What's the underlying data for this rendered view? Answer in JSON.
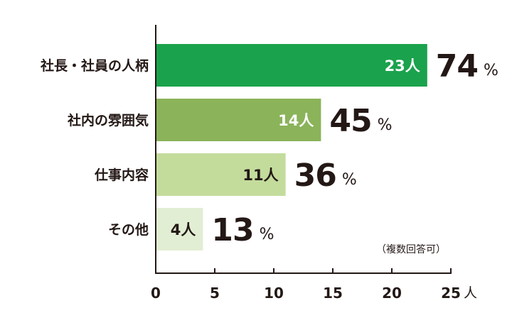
{
  "chart_data": {
    "type": "bar",
    "orientation": "horizontal",
    "categories": [
      "社長・社員の人柄",
      "社内の雰囲気",
      "仕事内容",
      "その他"
    ],
    "values": [
      23,
      14,
      11,
      4
    ],
    "value_labels": [
      "23人",
      "14人",
      "11人",
      "4人"
    ],
    "percent_values": [
      "74",
      "45",
      "36",
      "13"
    ],
    "percent_symbol": "%",
    "bar_colors": [
      "#1aa24c",
      "#8ab35a",
      "#c3dc9c",
      "#e2eed3"
    ],
    "value_label_colors": [
      "#ffffff",
      "#ffffff",
      "#231815",
      "#231815"
    ],
    "xlim": [
      0,
      25
    ],
    "xticks": [
      "0",
      "5",
      "10",
      "15",
      "20",
      "25"
    ],
    "x_unit": "人",
    "note": "（複数回答可）",
    "grid": false,
    "legend": "none"
  }
}
